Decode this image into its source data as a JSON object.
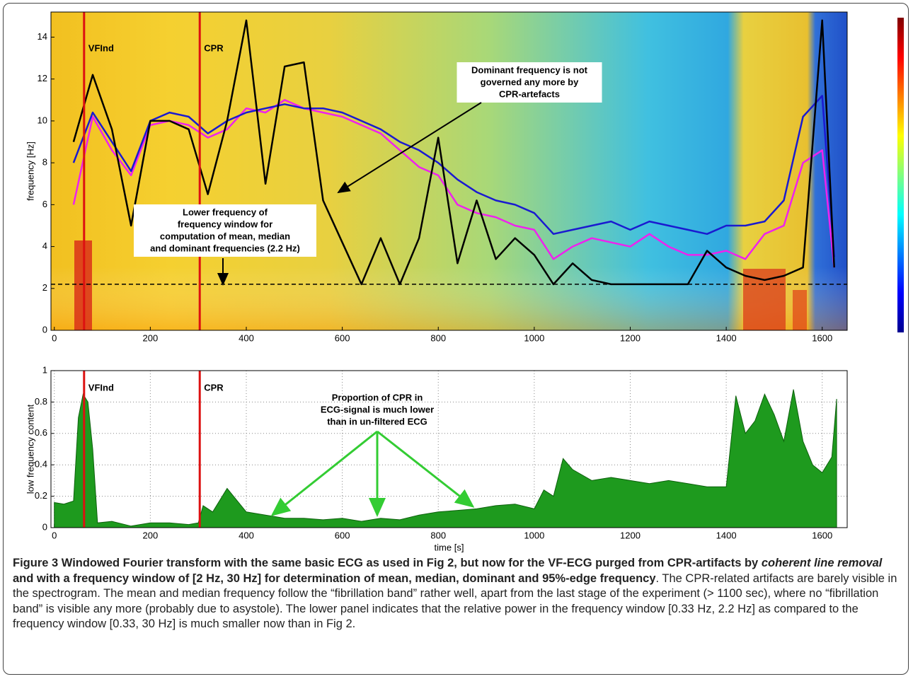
{
  "chart_data": [
    {
      "type": "line",
      "ylabel": "frequency [Hz]",
      "xlim": [
        -7,
        1652
      ],
      "ylim": [
        0,
        15.2
      ],
      "xticks": [
        0,
        200,
        400,
        600,
        800,
        1000,
        1200,
        1400,
        1600
      ],
      "yticks": [
        0,
        2,
        4,
        6,
        8,
        10,
        12,
        14
      ],
      "x": [
        40,
        80,
        120,
        160,
        200,
        240,
        280,
        320,
        360,
        400,
        440,
        480,
        520,
        560,
        600,
        640,
        680,
        720,
        760,
        800,
        840,
        880,
        920,
        960,
        1000,
        1040,
        1080,
        1120,
        1160,
        1200,
        1240,
        1280,
        1320,
        1360,
        1400,
        1440,
        1480,
        1520,
        1560,
        1600,
        1625
      ],
      "series": [
        {
          "color": "#ee22ee",
          "values": [
            6,
            10.2,
            8.6,
            7.4,
            9.8,
            10,
            9.8,
            9.2,
            9.6,
            10.6,
            10.4,
            11,
            10.6,
            10.4,
            10.2,
            9.8,
            9.4,
            8.6,
            7.8,
            7.4,
            6,
            5.6,
            5.4,
            5,
            4.8,
            3.4,
            4,
            4.4,
            4.2,
            4,
            4.6,
            4,
            3.6,
            3.6,
            3.8,
            3.4,
            4.6,
            5,
            8,
            8.6,
            3
          ]
        },
        {
          "color": "#1a1ad0",
          "values": [
            8.0,
            10.4,
            9.0,
            7.6,
            10.0,
            10.4,
            10.2,
            9.4,
            10.0,
            10.4,
            10.6,
            10.8,
            10.6,
            10.6,
            10.4,
            10.0,
            9.6,
            9.0,
            8.6,
            8.0,
            7.2,
            6.6,
            6.2,
            6.0,
            5.6,
            4.6,
            4.8,
            5.0,
            5.2,
            4.8,
            5.2,
            5.0,
            4.8,
            4.6,
            5.0,
            5.0,
            5.2,
            6.2,
            10.2,
            11.2,
            3.5
          ]
        },
        {
          "color": "#000000",
          "values": [
            9,
            12.2,
            9.6,
            5,
            10,
            10,
            9.6,
            6.5,
            10,
            14.8,
            7,
            12.6,
            12.8,
            6.2,
            4.2,
            2.2,
            4.4,
            2.2,
            4.4,
            9.2,
            3.2,
            6.2,
            3.4,
            4.4,
            3.6,
            2.2,
            3.2,
            2.4,
            2.2,
            2.2,
            2.2,
            2.2,
            2.2,
            3.8,
            3,
            2.6,
            2.4,
            2.6,
            3,
            14.8,
            3
          ]
        }
      ],
      "markers": [
        {
          "label": "VFInd",
          "x": 62,
          "color": "#dd1111"
        },
        {
          "label": "CPR",
          "x": 303,
          "color": "#dd1111"
        }
      ],
      "threshold": 2.2,
      "annotations": [
        {
          "lines": [
            "Dominant frequency is not",
            "governed any more by",
            "CPR-artefacts"
          ]
        },
        {
          "lines": [
            "Lower frequency of",
            "frequency window for",
            "computation of mean, median",
            "and dominant frequencies (2.2 Hz)"
          ]
        }
      ]
    },
    {
      "type": "area",
      "ylabel": "low frequency content",
      "xlabel": "time [s]",
      "xlim": [
        -7,
        1652
      ],
      "ylim": [
        0,
        1
      ],
      "xticks": [
        0,
        200,
        400,
        600,
        800,
        1000,
        1200,
        1400,
        1600
      ],
      "yticks": [
        0,
        0.2,
        0.4,
        0.6,
        0.8,
        1
      ],
      "grid": true,
      "color": "#1e9a1e",
      "x": [
        0,
        20,
        40,
        50,
        60,
        70,
        80,
        90,
        120,
        160,
        200,
        240,
        280,
        300,
        310,
        330,
        360,
        400,
        440,
        480,
        520,
        560,
        600,
        640,
        680,
        720,
        760,
        800,
        840,
        880,
        920,
        960,
        1000,
        1020,
        1040,
        1060,
        1080,
        1120,
        1160,
        1200,
        1240,
        1280,
        1320,
        1360,
        1400,
        1420,
        1440,
        1460,
        1480,
        1500,
        1520,
        1540,
        1560,
        1580,
        1600,
        1620,
        1630
      ],
      "values": [
        0.16,
        0.15,
        0.17,
        0.7,
        0.85,
        0.8,
        0.5,
        0.03,
        0.04,
        0.01,
        0.03,
        0.03,
        0.02,
        0.03,
        0.14,
        0.1,
        0.25,
        0.1,
        0.08,
        0.06,
        0.06,
        0.05,
        0.06,
        0.04,
        0.06,
        0.05,
        0.08,
        0.1,
        0.11,
        0.12,
        0.14,
        0.15,
        0.12,
        0.24,
        0.2,
        0.44,
        0.37,
        0.3,
        0.32,
        0.3,
        0.28,
        0.3,
        0.28,
        0.26,
        0.26,
        0.84,
        0.6,
        0.68,
        0.85,
        0.72,
        0.55,
        0.88,
        0.55,
        0.4,
        0.35,
        0.45,
        0.82
      ],
      "markers": [
        {
          "label": "VFInd",
          "x": 62,
          "color": "#dd1111"
        },
        {
          "label": "CPR",
          "x": 303,
          "color": "#dd1111"
        }
      ],
      "annotations": [
        {
          "lines": [
            "Proportion of CPR in",
            "ECG-signal is much lower",
            "than in un-filtered ECG"
          ],
          "color": "#33cc33"
        }
      ]
    }
  ],
  "caption": [
    {
      "text": "Figure 3 Windowed Fourier transform with the same basic ECG as used in Fig 2, but now for the VF-ECG purged from CPR-artifacts by ",
      "style": "bold"
    },
    {
      "text": "coherent line removal",
      "style": "bolditalic"
    },
    {
      "text": " and with a frequency window of [2 Hz, 30 Hz] for determination of mean, median, dominant and 95%-edge frequency",
      "style": "bold"
    },
    {
      "text": ". The CPR-related artifacts are barely visible in the spectrogram. The mean and median frequency follow the “fibrillation band” rather well, apart from the last stage of the experiment (> 1100 sec), where no “fibrillation band” is visible any more (probably due to asystole). The lower panel indicates that the relative power in the frequency window [0.33 Hz, 2.2 Hz] as compared to the frequency window [0.33, 30 Hz] is much smaller now than in Fig 2.",
      "style": "plain"
    }
  ]
}
